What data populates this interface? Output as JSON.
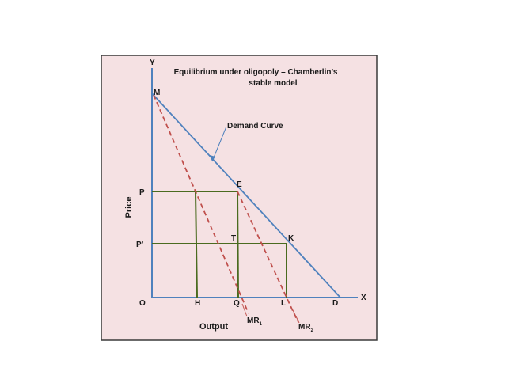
{
  "title": {
    "line1": "Equilibrium under oligopoly – Chamberlin’s",
    "line2": "stable model"
  },
  "axes": {
    "y_letter": "Y",
    "x_letter": "X",
    "origin": "O",
    "y_title": "Price",
    "x_title": "Output"
  },
  "points": {
    "M": "M",
    "P": "P",
    "P_prime": "P’",
    "E": "E",
    "T": "T",
    "K": "K",
    "H": "H",
    "Q": "Q",
    "L": "L",
    "D": "D"
  },
  "curves": {
    "demand": "Demand Curve",
    "mr1_base": "MR",
    "mr1_sub": "1",
    "mr2_base": "MR",
    "mr2_sub": "2"
  },
  "colors": {
    "background": "#f5e1e3",
    "border": "#3a3a3a",
    "axis": "#4f81bd",
    "demand": "#4f81bd",
    "mr": "#c0504d",
    "guides": "#4a6b1f"
  }
}
